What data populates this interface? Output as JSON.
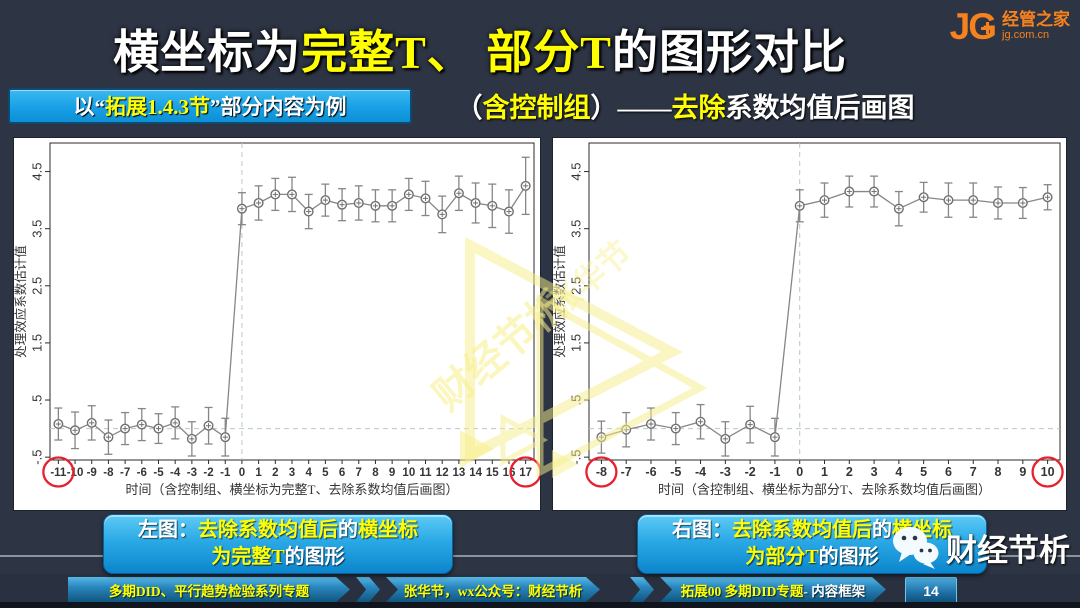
{
  "colors": {
    "accent_yellow": "#ffff00",
    "slide_background": "#2d3443",
    "box_blue": "#17a0e6",
    "logo_orange": "#f5821f",
    "circle_red": "#e8202e",
    "series_gray": "#868686",
    "watermark_yellow": "#f7ef8a"
  },
  "header": {
    "title_parts": [
      {
        "text": "横坐标为",
        "color": "#ffffff"
      },
      {
        "text": "完整T、",
        "color": "#ffff00"
      },
      {
        "text": " 部分T",
        "color": "#ffff00"
      },
      {
        "text": "的图形对比",
        "color": "#ffffff"
      }
    ],
    "subtitle_parts": [
      {
        "text": "（",
        "color": "#ffffff"
      },
      {
        "text": "含控制组",
        "color": "#ffff00"
      },
      {
        "text": "）——",
        "color": "#ffffff"
      },
      {
        "text": "去除",
        "color": "#ffff00"
      },
      {
        "text": "系数均值后画图",
        "color": "#ffffff"
      }
    ],
    "example_box_parts": [
      {
        "text": "以“",
        "color": "#ffffff"
      },
      {
        "text": "拓展1.4.3节",
        "color": "#ffff00"
      },
      {
        "text": "”部分内容为例",
        "color": "#ffffff"
      }
    ],
    "logo": {
      "mark": "JG",
      "name": "经管之家",
      "domain": "jg.com.cn"
    }
  },
  "watermark": {
    "texts": [
      "财经节析",
      "张华节"
    ]
  },
  "captions": {
    "left": {
      "line1_parts": [
        {
          "text": "左图：",
          "color": "#ffffff"
        },
        {
          "text": "去除系数均值后",
          "color": "#ffff00"
        },
        {
          "text": "的",
          "color": "#ffffff"
        },
        {
          "text": "横坐标",
          "color": "#ffff00"
        }
      ],
      "line2_parts": [
        {
          "text": "为完整T",
          "color": "#ffff00"
        },
        {
          "text": "的图形",
          "color": "#ffffff"
        }
      ]
    },
    "right": {
      "line1_parts": [
        {
          "text": "右图：",
          "color": "#ffffff"
        },
        {
          "text": "去除系数均值后",
          "color": "#ffff00"
        },
        {
          "text": "的",
          "color": "#ffffff"
        },
        {
          "text": "横坐标",
          "color": "#ffff00"
        }
      ],
      "line2_parts": [
        {
          "text": "为部分T",
          "color": "#ffff00"
        },
        {
          "text": "的图形",
          "color": "#ffffff"
        }
      ]
    }
  },
  "footer": {
    "banners": [
      {
        "parts": [
          {
            "text": "多期DID、平行趋势检验系列专题",
            "color": "#ffff00"
          }
        ]
      },
      {
        "parts": [
          {
            "text": "张华节，wx公众号：财经节析",
            "color": "#ffff00"
          }
        ]
      },
      {
        "parts": [
          {
            "text": "拓展00 多期DID专题",
            "color": "#ffff00"
          },
          {
            "text": " - 内容框架",
            "color": "#ffffff"
          }
        ]
      }
    ],
    "page_number": "14",
    "wechat_name": "财经节析"
  },
  "chart_data": [
    {
      "type": "scatter",
      "title": "",
      "xlabel": "时间（含控制组、横坐标为完整T、去除系数均值后画图）",
      "ylabel": "处理效应系数估计值",
      "x": [
        -11,
        -10,
        -9,
        -8,
        -7,
        -6,
        -5,
        -4,
        -3,
        -2,
        -1,
        0,
        1,
        2,
        3,
        4,
        5,
        6,
        7,
        8,
        9,
        10,
        11,
        12,
        13,
        14,
        15,
        16,
        17
      ],
      "y": [
        0.08,
        -0.03,
        0.1,
        -0.15,
        0.0,
        0.07,
        0.0,
        0.1,
        -0.18,
        0.05,
        -0.15,
        3.85,
        3.95,
        4.1,
        4.1,
        3.8,
        4.0,
        3.92,
        3.95,
        3.9,
        3.9,
        4.1,
        4.03,
        3.75,
        4.12,
        3.95,
        3.9,
        3.8,
        4.25
      ],
      "ci": [
        0.28,
        0.32,
        0.3,
        0.3,
        0.28,
        0.28,
        0.26,
        0.28,
        0.3,
        0.32,
        0.33,
        0.28,
        0.3,
        0.28,
        0.3,
        0.3,
        0.28,
        0.28,
        0.3,
        0.28,
        0.28,
        0.28,
        0.3,
        0.32,
        0.3,
        0.35,
        0.38,
        0.38,
        0.5
      ],
      "yticks": [
        -0.5,
        0.5,
        1.5,
        2.5,
        3.5,
        4.5
      ],
      "ytick_labels": [
        "-.5",
        ".5",
        "1.5",
        "2.5",
        "3.5",
        "4.5"
      ],
      "ylim": [
        -0.55,
        5.0
      ],
      "vline_x": 0,
      "hline_y": 0,
      "grid": false,
      "legend": null,
      "circled_xticks": [
        -11,
        17
      ]
    },
    {
      "type": "scatter",
      "title": "",
      "xlabel": "时间（含控制组、横坐标为部分T、去除系数均值后画图）",
      "ylabel": "处理效应系数估计值",
      "x": [
        -8,
        -7,
        -6,
        -5,
        -4,
        -3,
        -2,
        -1,
        0,
        1,
        2,
        3,
        4,
        5,
        6,
        7,
        8,
        9,
        10
      ],
      "y": [
        -0.15,
        -0.02,
        0.08,
        0.0,
        0.12,
        -0.18,
        0.07,
        -0.15,
        3.9,
        4.0,
        4.15,
        4.15,
        3.85,
        4.05,
        4.0,
        4.0,
        3.95,
        3.95,
        4.05
      ],
      "ci": [
        0.28,
        0.3,
        0.28,
        0.28,
        0.3,
        0.3,
        0.32,
        0.33,
        0.28,
        0.3,
        0.27,
        0.27,
        0.3,
        0.26,
        0.3,
        0.3,
        0.28,
        0.27,
        0.22
      ],
      "yticks": [
        -0.5,
        0.5,
        1.5,
        2.5,
        3.5,
        4.5
      ],
      "ytick_labels": [
        "-.5",
        ".5",
        "1.5",
        "2.5",
        "3.5",
        "4.5"
      ],
      "ylim": [
        -0.55,
        5.0
      ],
      "vline_x": 0,
      "hline_y": 0,
      "grid": false,
      "legend": null,
      "circled_xticks": [
        -8,
        10
      ]
    }
  ]
}
